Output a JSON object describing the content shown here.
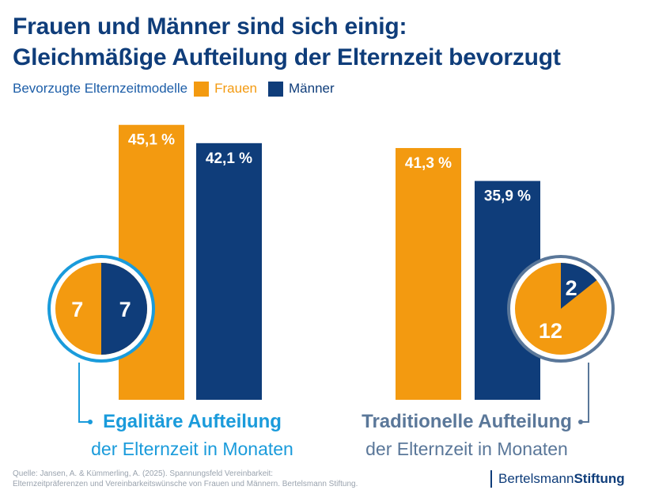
{
  "title": {
    "line1": "Frauen und Männer sind sich einig:",
    "line2": "Gleichmäßige Aufteilung der Elternzeit bevorzugt"
  },
  "legend": {
    "label": "Bevorzugte Elternzeitmodelle",
    "women": "Frauen",
    "men": "Männer"
  },
  "colors": {
    "women": "#f39a10",
    "men": "#0f3d7a",
    "egalitarian_accent": "#1a9bdb",
    "traditional_accent": "#5a7799",
    "title": "#0f3d7a"
  },
  "chart_data": {
    "type": "bar",
    "title": "Bevorzugte Elternzeitmodelle",
    "categories": [
      "Egalitäre Aufteilung",
      "Traditionelle Aufteilung"
    ],
    "series": [
      {
        "name": "Frauen",
        "values": [
          45.1,
          41.3
        ],
        "labels": [
          "45,1 %",
          "41,3 %"
        ]
      },
      {
        "name": "Männer",
        "values": [
          42.1,
          35.9
        ],
        "labels": [
          "42,1 %",
          "35,9 %"
        ]
      }
    ],
    "ylim": [
      0,
      50
    ],
    "unit": "%",
    "grid": false,
    "legend_position": "top-left",
    "insets": [
      {
        "type": "pie",
        "category": "Egalitäre Aufteilung",
        "slices": [
          {
            "name": "Frauen",
            "value": 7,
            "label": "7"
          },
          {
            "name": "Männer",
            "value": 7,
            "label": "7"
          }
        ]
      },
      {
        "type": "pie",
        "category": "Traditionelle Aufteilung",
        "slices": [
          {
            "name": "Frauen",
            "value": 12,
            "label": "12"
          },
          {
            "name": "Männer",
            "value": 2,
            "label": "2"
          }
        ]
      }
    ]
  },
  "captions": {
    "egalitarian": {
      "line1": "Egalitäre Aufteilung",
      "line2": "der Elternzeit in Monaten"
    },
    "traditional": {
      "line1": "Traditionelle Aufteilung",
      "line2": "der Elternzeit in Monaten"
    }
  },
  "source": {
    "line1": "Quelle: Jansen, A. & Kümmerling, A. (2025). Spannungsfeld Vereinbarkeit:",
    "line2": "Elternzeitpräferenzen und Vereinbarkeitswünsche von Frauen und Männern. Bertelsmann Stiftung."
  },
  "logo": {
    "part1": "Bertelsmann",
    "part2": "Stiftung"
  }
}
